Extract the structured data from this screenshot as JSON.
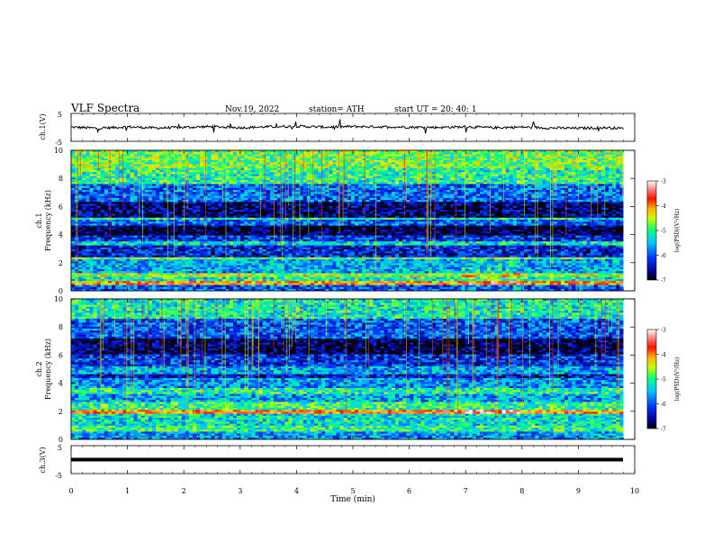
{
  "header": {
    "title": "VLF  Spectra",
    "date": "Nov.19, 2022",
    "station": "station= ATH",
    "start": "start  UT  =    20: 40: 1"
  },
  "chart_data": [
    {
      "type": "line",
      "panel": "ch1-waveform",
      "title": "",
      "xlabel": "",
      "ylabel": "ch.1(V)",
      "yticks": [
        "5",
        "-5"
      ],
      "ylim": [
        -5,
        5
      ],
      "xlim": [
        0,
        10
      ],
      "x": [
        0,
        0.5,
        1,
        1.5,
        2,
        2.5,
        3,
        3.5,
        4,
        4.5,
        5,
        5.5,
        6,
        6.5,
        7,
        7.5,
        8,
        8.5,
        9,
        9.5,
        9.8
      ],
      "values": [
        0.1,
        -0.3,
        0.2,
        -0.2,
        0.0,
        0.3,
        -0.1,
        0.2,
        0.4,
        0.1,
        0.3,
        0.2,
        0.1,
        0.0,
        0.2,
        -0.1,
        0.1,
        -0.2,
        -0.3,
        -0.1,
        -0.4
      ]
    },
    {
      "type": "heatmap",
      "panel": "ch1-spectrogram",
      "ylabel": "ch.1\nFrequency  (kHz)",
      "yticks": [
        "0",
        "2",
        "4",
        "6",
        "8",
        "10"
      ],
      "ylim": [
        0,
        10
      ],
      "xlim": [
        0,
        10
      ],
      "data_end": 9.8,
      "colorbar": {
        "label": "log(PSD)(V²/Hz)",
        "ticks": [
          "-3",
          "-4",
          "-5",
          "-6",
          "-7"
        ],
        "range": [
          -7,
          -3
        ]
      },
      "bands": [
        {
          "f": [
            0.0,
            0.4
          ],
          "level": -6.0
        },
        {
          "f": [
            0.4,
            0.7
          ],
          "level": -4.0
        },
        {
          "f": [
            0.7,
            1.0
          ],
          "level": -5.2
        },
        {
          "f": [
            1.0,
            1.3
          ],
          "level": -4.6
        },
        {
          "f": [
            1.3,
            2.2
          ],
          "level": -5.6
        },
        {
          "f": [
            2.2,
            2.4
          ],
          "level": -4.8
        },
        {
          "f": [
            2.4,
            3.3
          ],
          "level": -6.3
        },
        {
          "f": [
            3.3,
            3.5
          ],
          "level": -5.3
        },
        {
          "f": [
            3.5,
            3.9
          ],
          "level": -6.2
        },
        {
          "f": [
            3.9,
            4.7
          ],
          "level": -6.9
        },
        {
          "f": [
            4.7,
            5.0
          ],
          "level": -5.9
        },
        {
          "f": [
            5.0,
            5.2
          ],
          "level": -5.2
        },
        {
          "f": [
            5.2,
            6.3
          ],
          "level": -6.7
        },
        {
          "f": [
            6.3,
            7.6
          ],
          "level": -5.9
        },
        {
          "f": [
            7.6,
            8.8
          ],
          "level": -5.1
        },
        {
          "f": [
            8.8,
            10.0
          ],
          "level": -4.8
        }
      ]
    },
    {
      "type": "heatmap",
      "panel": "ch2-spectrogram",
      "ylabel": "ch.2\nFrequency  (kHz)",
      "yticks": [
        "0",
        "2",
        "4",
        "6",
        "8",
        "10"
      ],
      "ylim": [
        0,
        10
      ],
      "xlim": [
        0,
        10
      ],
      "data_end": 9.8,
      "colorbar": {
        "label": "log(PSD)(V²/Hz)",
        "ticks": [
          "-3",
          "-4",
          "-5",
          "-6",
          "-7"
        ],
        "range": [
          -7,
          -3
        ]
      },
      "bands": [
        {
          "f": [
            0.0,
            0.5
          ],
          "level": -5.7
        },
        {
          "f": [
            0.5,
            1.0
          ],
          "level": -5.0
        },
        {
          "f": [
            1.0,
            1.8
          ],
          "level": -5.3
        },
        {
          "f": [
            1.8,
            2.1
          ],
          "level": -3.9
        },
        {
          "f": [
            2.1,
            2.6
          ],
          "level": -5.0
        },
        {
          "f": [
            2.6,
            3.2
          ],
          "level": -5.6
        },
        {
          "f": [
            3.2,
            3.6
          ],
          "level": -5.1
        },
        {
          "f": [
            3.6,
            4.3
          ],
          "level": -5.7
        },
        {
          "f": [
            4.3,
            4.7
          ],
          "level": -6.4
        },
        {
          "f": [
            4.7,
            5.2
          ],
          "level": -5.6
        },
        {
          "f": [
            5.2,
            6.0
          ],
          "level": -6.2
        },
        {
          "f": [
            6.0,
            7.2
          ],
          "level": -6.8
        },
        {
          "f": [
            7.2,
            8.6
          ],
          "level": -6.0
        },
        {
          "f": [
            8.6,
            10.0
          ],
          "level": -5.2
        }
      ]
    },
    {
      "type": "line",
      "panel": "ch3-waveform",
      "ylabel": "ch.3(V)",
      "yticks": [
        "5",
        "-5"
      ],
      "ylim": [
        -5,
        5
      ],
      "xlim": [
        0,
        10
      ],
      "xlabel": "Time  (min)",
      "xticks": [
        "0",
        "1",
        "2",
        "3",
        "4",
        "5",
        "6",
        "7",
        "8",
        "9",
        "10"
      ],
      "x": [
        0,
        9.8
      ],
      "values": [
        0,
        0
      ]
    }
  ]
}
